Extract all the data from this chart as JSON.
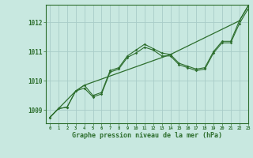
{
  "title": "Graphe pression niveau de la mer (hPa)",
  "background_color": "#c8e8e0",
  "grid_color": "#a8ccc8",
  "line_color": "#2d6e2d",
  "xlim": [
    -0.5,
    23
  ],
  "ylim": [
    1008.55,
    1012.6
  ],
  "yticks": [
    1009,
    1010,
    1011,
    1012
  ],
  "xticks": [
    0,
    1,
    2,
    3,
    4,
    5,
    6,
    7,
    8,
    9,
    10,
    11,
    12,
    13,
    14,
    15,
    16,
    17,
    18,
    19,
    20,
    21,
    22,
    23
  ],
  "line1": {
    "x": [
      0,
      1,
      2,
      3,
      4,
      5,
      6,
      7,
      8,
      9,
      10,
      11,
      12,
      13,
      14,
      15,
      16,
      17,
      18,
      19,
      20,
      21,
      22,
      23
    ],
    "y": [
      1008.75,
      1009.05,
      1009.1,
      1009.65,
      1009.85,
      1009.5,
      1009.6,
      1010.35,
      1010.45,
      1010.85,
      1011.05,
      1011.25,
      1011.1,
      1010.95,
      1010.9,
      1010.6,
      1010.5,
      1010.4,
      1010.45,
      1011.0,
      1011.35,
      1011.35,
      1012.05,
      1012.55
    ]
  },
  "line2": {
    "x": [
      0,
      1,
      2,
      3,
      4,
      5,
      6,
      7,
      8,
      9,
      10,
      11,
      12,
      13,
      14,
      15,
      16,
      17,
      18,
      19,
      20,
      21,
      22,
      23
    ],
    "y": [
      1008.75,
      1009.05,
      1009.1,
      1009.65,
      1009.75,
      1009.45,
      1009.55,
      1010.3,
      1010.4,
      1010.8,
      1010.95,
      1011.15,
      1011.05,
      1010.85,
      1010.85,
      1010.55,
      1010.45,
      1010.35,
      1010.4,
      1010.95,
      1011.3,
      1011.3,
      1011.95,
      1012.45
    ]
  },
  "line3": {
    "x": [
      0,
      3,
      4,
      14,
      22,
      23
    ],
    "y": [
      1008.75,
      1009.65,
      1009.85,
      1010.9,
      1012.05,
      1012.55
    ]
  }
}
